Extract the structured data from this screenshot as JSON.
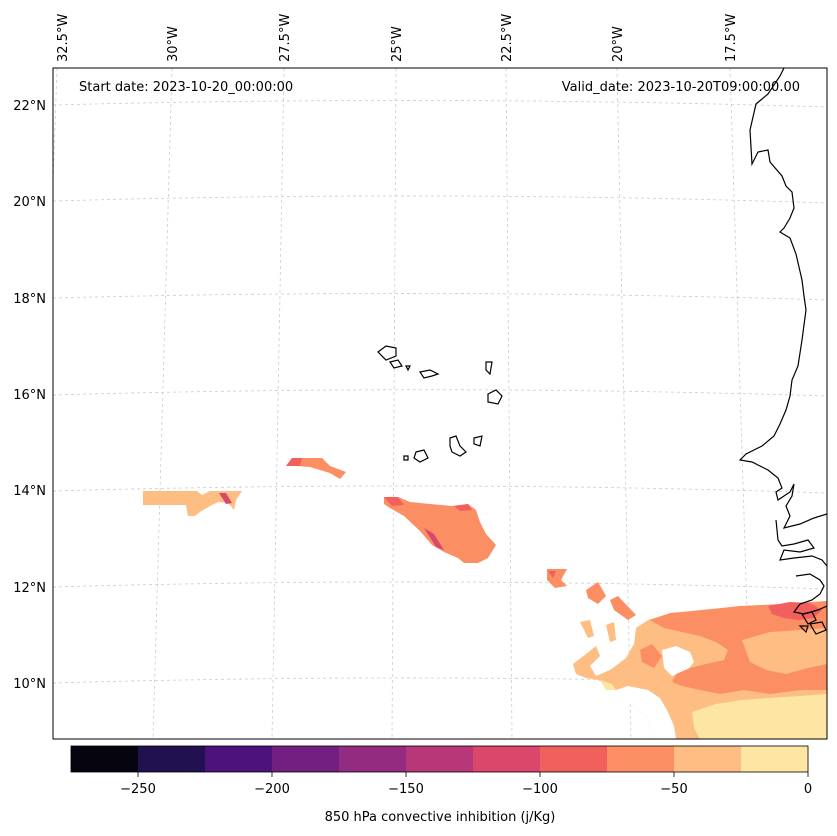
{
  "header": {
    "start_date": "Start date: 2023-10-20_00:00:00",
    "valid_date": "Valid_date: 2023-10-20T09:00:00.00"
  },
  "axes": {
    "lon_labels": [
      "32.5°W",
      "30°W",
      "27.5°W",
      "25°W",
      "22.5°W",
      "20°W",
      "17.5°W"
    ],
    "lat_labels": [
      "22°N",
      "20°N",
      "18°N",
      "16°N",
      "14°N",
      "12°N",
      "10°N"
    ]
  },
  "colorbar": {
    "title": "850 hPa convective inhibition (j/Kg)",
    "tick_labels": [
      "−250",
      "−200",
      "−150",
      "−100",
      "−50",
      "0"
    ],
    "colors": [
      "#05040f",
      "#221150",
      "#4d137b",
      "#721f81",
      "#932b80",
      "#b83779",
      "#db476a",
      "#f1605d",
      "#fc8e64",
      "#febd82",
      "#fde6a4"
    ]
  },
  "chart_data": {
    "type": "heatmap",
    "variable": "850 hPa convective inhibition",
    "units": "j/Kg",
    "colorbar_range": [
      -275,
      0
    ],
    "colorbar_levels": [
      -275,
      -250,
      -225,
      -200,
      -175,
      -150,
      -125,
      -100,
      -75,
      -50,
      -25,
      0
    ],
    "colorbar_ticks": [
      -250,
      -200,
      -150,
      -100,
      -50,
      0
    ],
    "lon_ticks_deg": [
      -32.5,
      -30,
      -27.5,
      -25,
      -22.5,
      -20,
      -17.5
    ],
    "lat_ticks_deg": [
      22,
      20,
      18,
      16,
      14,
      12,
      10
    ],
    "start_date": "2023-10-20_00:00:00",
    "valid_date": "2023-10-20T09:00:00.00"
  }
}
